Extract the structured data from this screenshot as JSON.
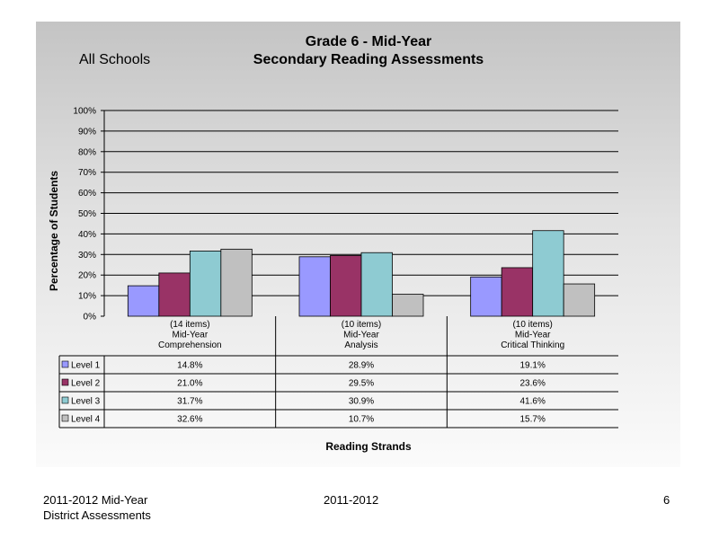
{
  "header": {
    "scope": "All Schools",
    "title_line1": "Grade 6 - Mid-Year",
    "title_line2": "Secondary Reading Assessments"
  },
  "chart_data": {
    "type": "bar",
    "ylabel": "Percentage of Students",
    "xlabel": "Reading Strands",
    "ylim": [
      0,
      100
    ],
    "yticks": [
      "0%",
      "10%",
      "20%",
      "30%",
      "40%",
      "50%",
      "60%",
      "70%",
      "80%",
      "90%",
      "100%"
    ],
    "grid": true,
    "categories": [
      {
        "items": "(14 items)",
        "line2": "Mid-Year",
        "line3": "Comprehension"
      },
      {
        "items": "(10 items)",
        "line2": "Mid-Year",
        "line3": "Analysis"
      },
      {
        "items": "(10 items)",
        "line2": "Mid-Year",
        "line3": "Critical Thinking"
      }
    ],
    "series": [
      {
        "name": "Level 1",
        "color": "#9999ff",
        "values": [
          14.8,
          28.9,
          19.1
        ],
        "labels": [
          "14.8%",
          "28.9%",
          "19.1%"
        ]
      },
      {
        "name": "Level 2",
        "color": "#993366",
        "values": [
          21.0,
          29.5,
          23.6
        ],
        "labels": [
          "21.0%",
          "29.5%",
          "23.6%"
        ]
      },
      {
        "name": "Level 3",
        "color": "#8ecbd2",
        "values": [
          31.7,
          30.9,
          41.6
        ],
        "labels": [
          "31.7%",
          "30.9%",
          "41.6%"
        ]
      },
      {
        "name": "Level 4",
        "color": "#c0c0c0",
        "values": [
          32.6,
          10.7,
          15.7
        ],
        "labels": [
          "32.6%",
          "10.7%",
          "15.7%"
        ]
      }
    ]
  },
  "footer": {
    "left_line1": "2011-2012  Mid-Year",
    "left_line2": "District Assessments",
    "center": "2011-2012",
    "page": "6"
  }
}
